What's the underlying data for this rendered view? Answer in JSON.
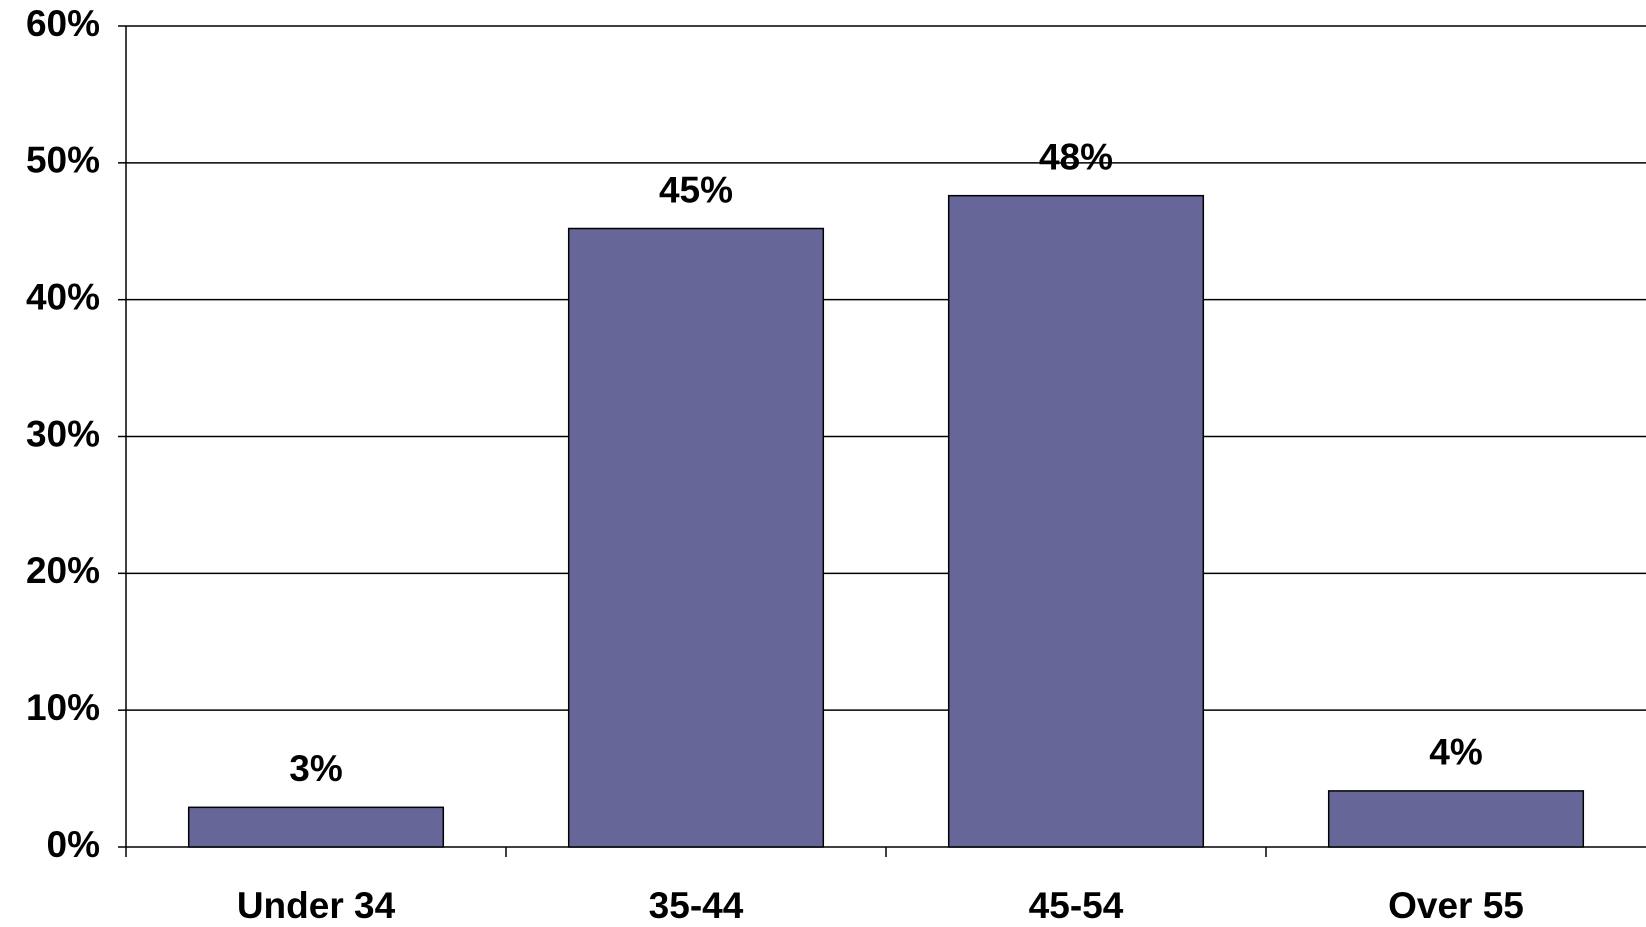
{
  "chart_data": {
    "type": "bar",
    "categories": [
      "Under 34",
      "35-44",
      "45-54",
      "Over 55"
    ],
    "values": [
      2.9,
      45.2,
      47.6,
      4.1
    ],
    "value_labels": [
      "3%",
      "45%",
      "48%",
      "4%"
    ],
    "color": "#666699",
    "ylim": [
      0,
      60
    ],
    "yticks": [
      {
        "value": 0,
        "label": "0%"
      },
      {
        "value": 10,
        "label": "10%"
      },
      {
        "value": 20,
        "label": "20%"
      },
      {
        "value": 30,
        "label": "30%"
      },
      {
        "value": 40,
        "label": "40%"
      },
      {
        "value": 50,
        "label": "50%"
      },
      {
        "value": 60,
        "label": "60%"
      }
    ],
    "grid": true
  }
}
